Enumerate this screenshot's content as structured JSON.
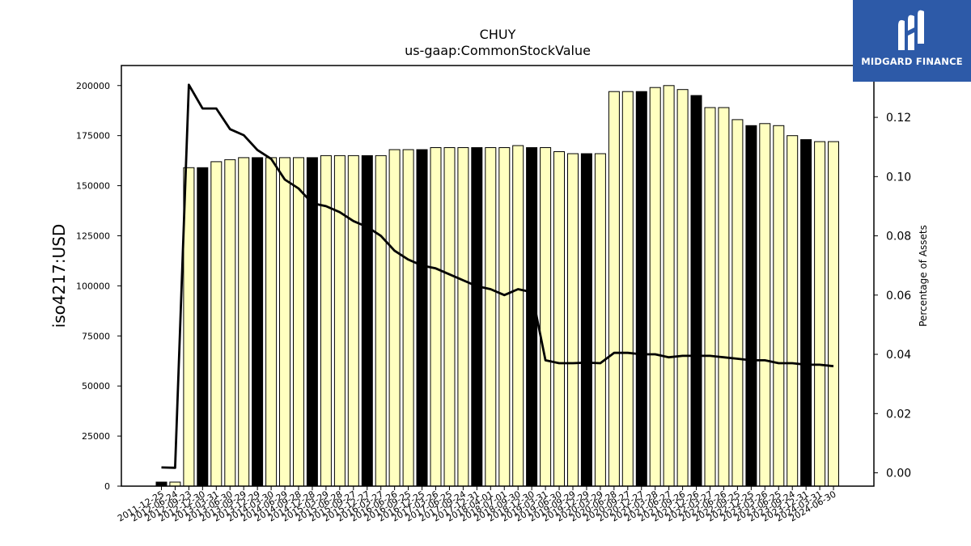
{
  "chart_data": {
    "type": "bar+line",
    "title": "CHUY",
    "subtitle": "us-gaap:CommonStockValue",
    "ylabel_left": "iso4217:USD",
    "ylabel_right": "Percentage of Assets",
    "ylim_left": [
      0,
      210000
    ],
    "ylim_right": [
      -0.0045,
      0.1375
    ],
    "yticks_left": [
      0,
      25000,
      50000,
      75000,
      100000,
      125000,
      150000,
      175000,
      200000
    ],
    "yticks_right": [
      "0.00",
      "0.02",
      "0.04",
      "0.06",
      "0.08",
      "0.10",
      "0.12"
    ],
    "legend": "none",
    "grid": false,
    "categories": [
      "2011-12-25",
      "2012-06-24",
      "2012-09-23",
      "2012-12-30",
      "2013-03-31",
      "2013-06-30",
      "2013-09-29",
      "2013-12-29",
      "2014-03-30",
      "2014-06-29",
      "2014-09-28",
      "2014-12-28",
      "2015-03-29",
      "2015-06-28",
      "2015-09-27",
      "2015-12-27",
      "2016-03-27",
      "2016-06-26",
      "2016-09-25",
      "2016-12-25",
      "2017-03-26",
      "2017-06-25",
      "2017-09-24",
      "2017-12-31",
      "2018-04-01",
      "2018-07-01",
      "2018-09-30",
      "2018-12-30",
      "2019-03-31",
      "2019-06-30",
      "2019-09-29",
      "2019-12-29",
      "2020-03-29",
      "2020-06-28",
      "2020-09-27",
      "2020-12-27",
      "2021-03-28",
      "2021-06-27",
      "2021-09-26",
      "2021-12-26",
      "2022-03-27",
      "2022-06-26",
      "2022-09-25",
      "2022-12-25",
      "2023-03-26",
      "2023-06-25",
      "2023-09-24",
      "2023-12-31",
      "2024-03-31",
      "2024-06-30"
    ],
    "xtick_labels": [
      "2011-12-25",
      "2012-06-24",
      "2012-09-23",
      "2012-12-30",
      "2013-03-31",
      "2013-06-30",
      "2013-09-29",
      "2013-12-29",
      "2014-03-30",
      "2014-06-29",
      "2014-09-28",
      "2014-12-28",
      "2015-03-29",
      "2015-06-28",
      "2015-09-27",
      "2015-12-27",
      "2016-03-27",
      "2016-06-26",
      "2016-09-25",
      "2016-12-25",
      "2017-03-26",
      "2017-06-25",
      "2017-09-24",
      "2017-12-31",
      "2018-04-01",
      "2018-07-01",
      "2018-09-30",
      "2018-12-30",
      "2019-03-31",
      "2019-06-30",
      "2019-09-29",
      "2019-12-29",
      "2020-03-29",
      "2020-06-28",
      "2020-09-27",
      "2020-12-27",
      "2021-03-28",
      "2021-06-27",
      "2021-09-26",
      "2021-12-26",
      "2022-03-27",
      "2022-06-26",
      "2022-09-25",
      "2022-12-25",
      "2023-03-26",
      "2023-06-25",
      "2023-09-24",
      "2023-12-31",
      "2024-03-31",
      "2024-06-30"
    ],
    "bar_values": [
      2000,
      2000,
      159000,
      159000,
      162000,
      163000,
      164000,
      164000,
      164000,
      164000,
      164000,
      164000,
      165000,
      165000,
      165000,
      165000,
      165000,
      168000,
      168000,
      168000,
      169000,
      169000,
      169000,
      169000,
      169000,
      169000,
      170000,
      169000,
      169000,
      167000,
      166000,
      166000,
      166000,
      197000,
      197000,
      197000,
      199000,
      200000,
      198000,
      195000,
      189000,
      189000,
      183000,
      180000,
      181000,
      180000,
      175000,
      173000,
      172000,
      172000
    ],
    "bar_highlight": [
      true,
      false,
      false,
      true,
      false,
      false,
      false,
      true,
      false,
      false,
      false,
      true,
      false,
      false,
      false,
      true,
      false,
      false,
      false,
      true,
      false,
      false,
      false,
      true,
      false,
      false,
      false,
      true,
      false,
      false,
      false,
      true,
      false,
      false,
      false,
      true,
      false,
      false,
      false,
      true,
      false,
      false,
      false,
      true,
      false,
      false,
      false,
      true,
      false,
      false
    ],
    "line_values": [
      0.0018,
      0.0017,
      0.131,
      0.123,
      0.123,
      0.116,
      0.114,
      0.109,
      0.106,
      0.099,
      0.096,
      0.091,
      0.09,
      0.088,
      0.085,
      0.083,
      0.08,
      0.075,
      0.072,
      0.07,
      0.069,
      0.067,
      0.065,
      0.063,
      0.062,
      0.06,
      0.062,
      0.061,
      0.038,
      0.037,
      0.037,
      0.0372,
      0.037,
      0.0405,
      0.0405,
      0.04,
      0.04,
      0.039,
      0.0395,
      0.0395,
      0.0395,
      0.039,
      0.0385,
      0.038,
      0.038,
      0.037,
      0.037,
      0.0365,
      0.0365,
      0.036
    ],
    "colors": {
      "bar_fill": "#ffffc0",
      "bar_highlight_fill": "#000000",
      "bar_stroke": "#000000",
      "line": "#000000"
    }
  },
  "logo": {
    "text": "MIDGARD FINANCE",
    "background": "#2d5aa8",
    "icon": "midgard-m-icon"
  }
}
